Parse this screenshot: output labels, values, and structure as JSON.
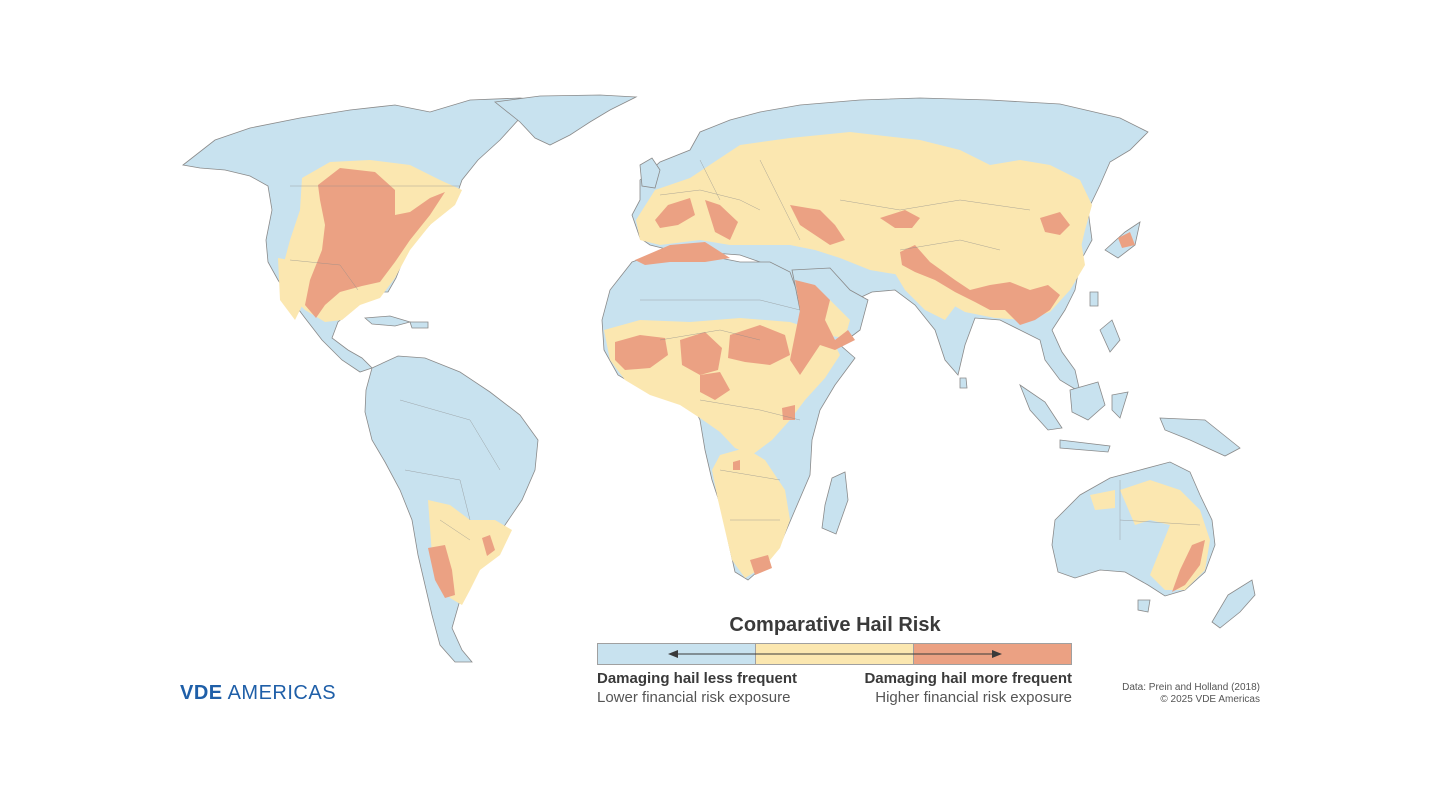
{
  "legend": {
    "title": "Comparative Hail Risk",
    "left_strong": "Damaging hail less frequent",
    "left_light": "Lower financial risk exposure",
    "right_strong": "Damaging hail more frequent",
    "right_light": "Higher financial risk exposure",
    "levels": [
      {
        "name": "low",
        "color": "#c8e2ef"
      },
      {
        "name": "moderate",
        "color": "#fbe7b0"
      },
      {
        "name": "high",
        "color": "#eba183"
      }
    ]
  },
  "logo": {
    "bold": "VDE",
    "light": "AMERICAS",
    "color": "#1f5fa8"
  },
  "credits": {
    "data": "Data: Prein and Holland (2018)",
    "copyright": "© 2025 VDE Americas"
  },
  "colors": {
    "land_low": "#c8e2ef",
    "land_moderate": "#fbe7b0",
    "land_high": "#eba183",
    "border": "#8a8a8a"
  }
}
